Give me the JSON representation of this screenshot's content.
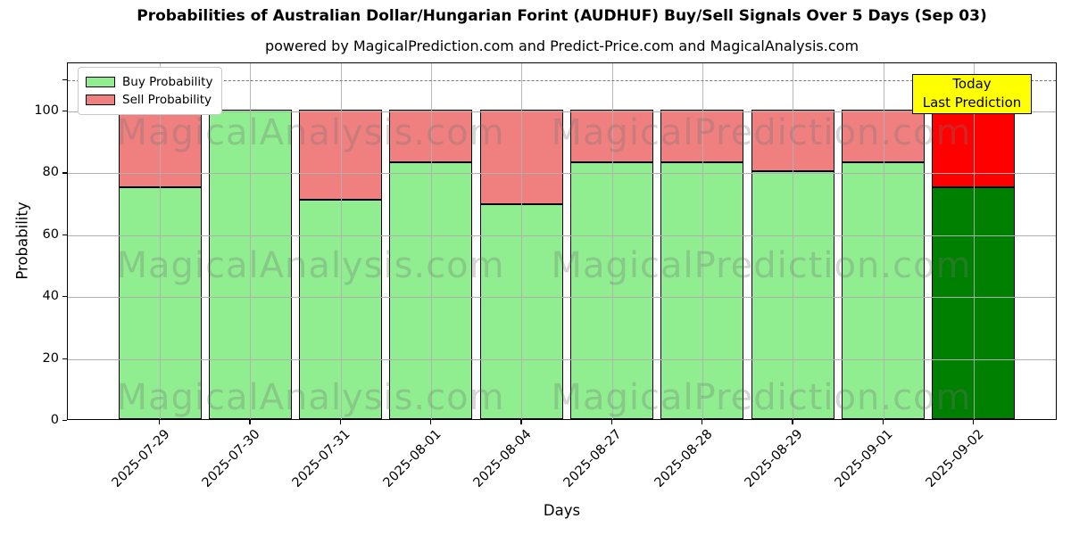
{
  "figure": {
    "title": "Probabilities of Australian Dollar/Hungarian Forint (AUDHUF) Buy/Sell Signals Over 5 Days (Sep 03)",
    "subtitle": "powered by MagicalPrediction.com and Predict-Price.com and MagicalAnalysis.com",
    "xlabel": "Days",
    "ylabel": "Probability"
  },
  "legend": {
    "items": [
      {
        "label": "Buy Probability",
        "color": "#90EE90"
      },
      {
        "label": "Sell Probability",
        "color": "#F08080"
      }
    ]
  },
  "annotation_box": {
    "line1": "Today",
    "line2": "Last Prediction",
    "bg_color": "#FFFF00"
  },
  "watermarks": {
    "left_text": "MagicalAnalysis.com",
    "right_text": "MagicalPrediction.com"
  },
  "chart_data": {
    "type": "bar",
    "stacked": true,
    "title": "Probabilities of Australian Dollar/Hungarian Forint (AUDHUF) Buy/Sell Signals Over 5 Days (Sep 03)",
    "xlabel": "Days",
    "ylabel": "Probability",
    "categories": [
      "2025-07-29",
      "2025-07-30",
      "2025-07-31",
      "2025-08-01",
      "2025-08-04",
      "2025-08-27",
      "2025-08-28",
      "2025-08-29",
      "2025-09-01",
      "2025-09-02"
    ],
    "series": [
      {
        "name": "Buy Probability",
        "color": "#90EE90",
        "values": [
          75,
          100,
          71,
          83,
          69.5,
          83,
          83,
          80,
          83,
          75
        ]
      },
      {
        "name": "Sell Probability",
        "color": "#F08080",
        "values": [
          25,
          0,
          29,
          17,
          30.5,
          17,
          17,
          20,
          17,
          25
        ]
      }
    ],
    "today_bar": {
      "category": "2025-09-02",
      "index": 9,
      "buy_color": "#008000",
      "sell_color": "#FF0000",
      "label": "Today Last Prediction"
    },
    "ylim": [
      0,
      115.5
    ],
    "yticks": [
      0,
      20,
      40,
      60,
      80,
      100
    ],
    "extra_unlabeled_ytick": 110,
    "dashed_guide_y": 110,
    "grid": true,
    "bar_edge_color": "#000000",
    "legend_position": "upper left"
  }
}
